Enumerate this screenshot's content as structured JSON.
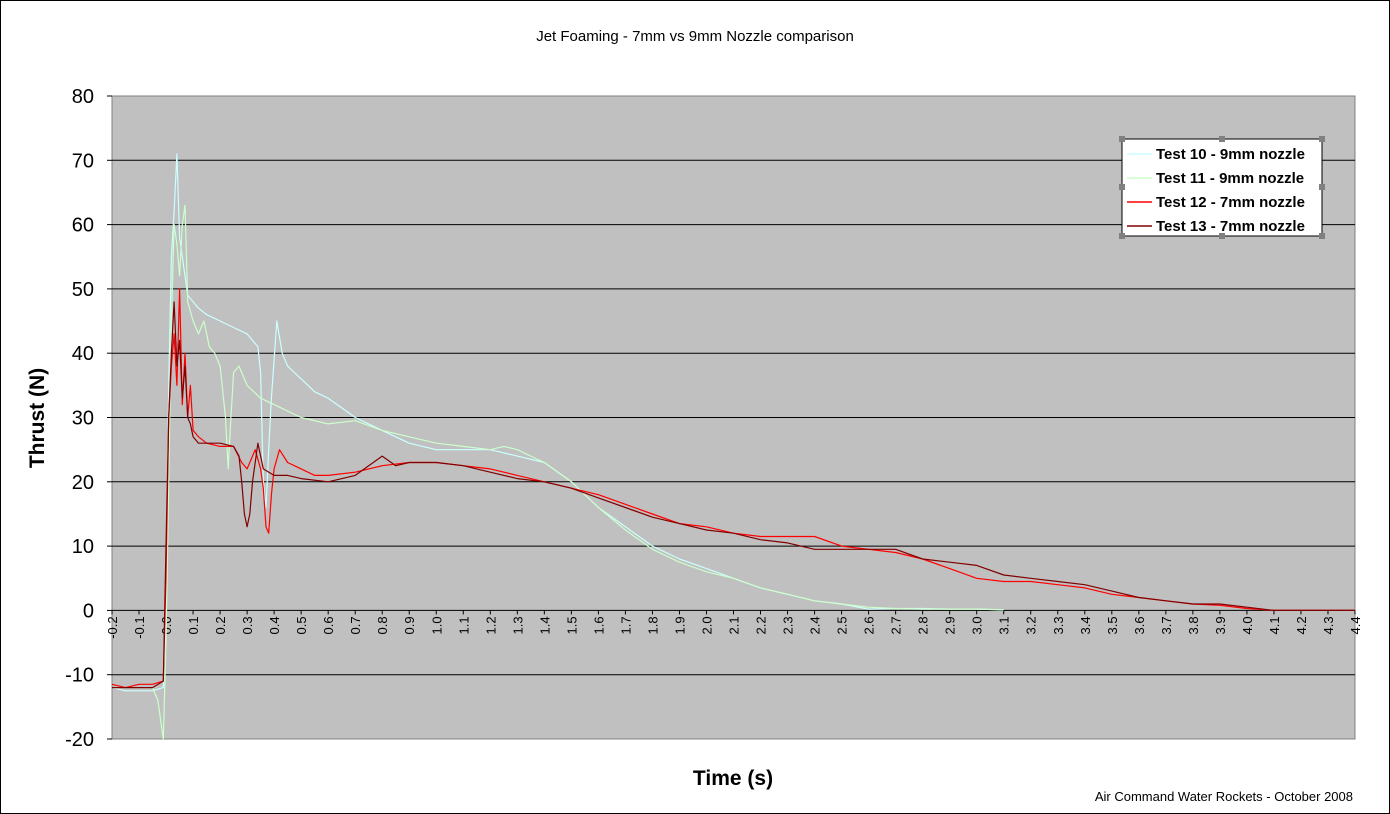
{
  "chart_data": {
    "type": "line",
    "title": "Jet Foaming - 7mm vs 9mm Nozzle comparison",
    "xlabel": "Time (s)",
    "ylabel": "Thrust (N)",
    "credit": "Air Command Water Rockets - October 2008",
    "xlim": [
      -0.2,
      4.4
    ],
    "ylim": [
      -20,
      80
    ],
    "y_ticks": [
      80,
      70,
      60,
      50,
      40,
      30,
      20,
      10,
      0,
      -10,
      -20
    ],
    "x_ticks": [
      "-0.2",
      "-0.1",
      "0.0",
      "0.1",
      "0.2",
      "0.3",
      "0.4",
      "0.5",
      "0.6",
      "0.7",
      "0.8",
      "0.9",
      "1.0",
      "1.1",
      "1.2",
      "1.3",
      "1.4",
      "1.5",
      "1.6",
      "1.7",
      "1.8",
      "1.9",
      "2.0",
      "2.1",
      "2.2",
      "2.3",
      "2.4",
      "2.5",
      "2.6",
      "2.7",
      "2.8",
      "2.9",
      "3.0",
      "3.1",
      "3.2",
      "3.3",
      "3.4",
      "3.5",
      "3.6",
      "3.7",
      "3.8",
      "3.9",
      "4.0",
      "4.1",
      "4.2",
      "4.3",
      "4.4"
    ],
    "grid": "horizontal",
    "legend_position": "top-right",
    "plot_background": "#c0c0c0",
    "series": [
      {
        "name": "Test 10 - 9mm nozzle",
        "color": "#ccffff",
        "points": [
          [
            -0.2,
            -12
          ],
          [
            -0.15,
            -12.5
          ],
          [
            -0.1,
            -12.5
          ],
          [
            -0.05,
            -12.5
          ],
          [
            -0.01,
            -12
          ],
          [
            0.0,
            0
          ],
          [
            0.01,
            35
          ],
          [
            0.02,
            55
          ],
          [
            0.03,
            62
          ],
          [
            0.04,
            71
          ],
          [
            0.05,
            58
          ],
          [
            0.06,
            55
          ],
          [
            0.07,
            52
          ],
          [
            0.08,
            49
          ],
          [
            0.1,
            48
          ],
          [
            0.12,
            47
          ],
          [
            0.15,
            46
          ],
          [
            0.2,
            45
          ],
          [
            0.25,
            44
          ],
          [
            0.3,
            43
          ],
          [
            0.34,
            41
          ],
          [
            0.35,
            37
          ],
          [
            0.36,
            20
          ],
          [
            0.37,
            16
          ],
          [
            0.38,
            25
          ],
          [
            0.39,
            33
          ],
          [
            0.41,
            45
          ],
          [
            0.43,
            40
          ],
          [
            0.45,
            38
          ],
          [
            0.5,
            36
          ],
          [
            0.55,
            34
          ],
          [
            0.6,
            33
          ],
          [
            0.7,
            30
          ],
          [
            0.8,
            28
          ],
          [
            0.9,
            26
          ],
          [
            1.0,
            25
          ],
          [
            1.1,
            25
          ],
          [
            1.2,
            25
          ],
          [
            1.3,
            24
          ],
          [
            1.4,
            23
          ],
          [
            1.5,
            20
          ],
          [
            1.6,
            16
          ],
          [
            1.7,
            13
          ],
          [
            1.8,
            10
          ],
          [
            1.9,
            8
          ],
          [
            2.0,
            6.5
          ],
          [
            2.1,
            5
          ],
          [
            2.2,
            3.5
          ],
          [
            2.3,
            2.5
          ],
          [
            2.4,
            1.5
          ],
          [
            2.5,
            1
          ],
          [
            2.6,
            0.2
          ],
          [
            2.7,
            0.3
          ],
          [
            2.8,
            0.3
          ],
          [
            2.9,
            0.2
          ],
          [
            3.0,
            0.2
          ],
          [
            3.1,
            0.1
          ]
        ]
      },
      {
        "name": "Test 11 - 9mm nozzle",
        "color": "#ccffcc",
        "points": [
          [
            -0.2,
            -12
          ],
          [
            -0.15,
            -12
          ],
          [
            -0.1,
            -12
          ],
          [
            -0.05,
            -12
          ],
          [
            -0.03,
            -14
          ],
          [
            -0.01,
            -20
          ],
          [
            0.0,
            -5
          ],
          [
            0.01,
            20
          ],
          [
            0.02,
            45
          ],
          [
            0.03,
            60
          ],
          [
            0.04,
            57
          ],
          [
            0.05,
            52
          ],
          [
            0.06,
            60
          ],
          [
            0.07,
            63
          ],
          [
            0.08,
            48
          ],
          [
            0.1,
            45
          ],
          [
            0.12,
            43
          ],
          [
            0.14,
            45
          ],
          [
            0.16,
            41
          ],
          [
            0.18,
            40
          ],
          [
            0.2,
            38
          ],
          [
            0.22,
            30
          ],
          [
            0.23,
            22
          ],
          [
            0.24,
            30
          ],
          [
            0.25,
            37
          ],
          [
            0.27,
            38
          ],
          [
            0.3,
            35
          ],
          [
            0.35,
            33
          ],
          [
            0.4,
            32
          ],
          [
            0.45,
            31
          ],
          [
            0.5,
            30
          ],
          [
            0.6,
            29
          ],
          [
            0.7,
            29.5
          ],
          [
            0.8,
            28
          ],
          [
            0.9,
            27
          ],
          [
            1.0,
            26
          ],
          [
            1.1,
            25.5
          ],
          [
            1.2,
            25
          ],
          [
            1.25,
            25.5
          ],
          [
            1.3,
            25
          ],
          [
            1.4,
            23
          ],
          [
            1.5,
            20
          ],
          [
            1.6,
            16
          ],
          [
            1.7,
            12.5
          ],
          [
            1.8,
            9.5
          ],
          [
            1.9,
            7.5
          ],
          [
            2.0,
            6
          ],
          [
            2.1,
            5
          ],
          [
            2.2,
            3.5
          ],
          [
            2.3,
            2.5
          ],
          [
            2.4,
            1.5
          ],
          [
            2.5,
            1
          ],
          [
            2.6,
            0.5
          ],
          [
            2.7,
            0.3
          ],
          [
            2.8,
            0.2
          ],
          [
            2.9,
            0.2
          ],
          [
            3.0,
            0.2
          ],
          [
            3.1,
            0.1
          ]
        ]
      },
      {
        "name": "Test 12 - 7mm nozzle",
        "color": "#ff0000",
        "points": [
          [
            -0.2,
            -11.5
          ],
          [
            -0.15,
            -12
          ],
          [
            -0.1,
            -11.5
          ],
          [
            -0.05,
            -11.5
          ],
          [
            -0.01,
            -11
          ],
          [
            0.0,
            5
          ],
          [
            0.01,
            30
          ],
          [
            0.02,
            38
          ],
          [
            0.03,
            43
          ],
          [
            0.04,
            35
          ],
          [
            0.05,
            50
          ],
          [
            0.06,
            32
          ],
          [
            0.07,
            40
          ],
          [
            0.08,
            30
          ],
          [
            0.09,
            35
          ],
          [
            0.1,
            28
          ],
          [
            0.12,
            27
          ],
          [
            0.15,
            26
          ],
          [
            0.2,
            25.5
          ],
          [
            0.25,
            25.5
          ],
          [
            0.28,
            23
          ],
          [
            0.3,
            22
          ],
          [
            0.33,
            25
          ],
          [
            0.35,
            22
          ],
          [
            0.36,
            19
          ],
          [
            0.37,
            13
          ],
          [
            0.38,
            12
          ],
          [
            0.39,
            18
          ],
          [
            0.4,
            22
          ],
          [
            0.42,
            25
          ],
          [
            0.45,
            23
          ],
          [
            0.5,
            22
          ],
          [
            0.55,
            21
          ],
          [
            0.6,
            21
          ],
          [
            0.7,
            21.5
          ],
          [
            0.8,
            22.5
          ],
          [
            0.9,
            23
          ],
          [
            1.0,
            23
          ],
          [
            1.1,
            22.5
          ],
          [
            1.2,
            22
          ],
          [
            1.3,
            21
          ],
          [
            1.4,
            20
          ],
          [
            1.5,
            19
          ],
          [
            1.6,
            18
          ],
          [
            1.7,
            16.5
          ],
          [
            1.8,
            15
          ],
          [
            1.9,
            13.5
          ],
          [
            2.0,
            13
          ],
          [
            2.1,
            12
          ],
          [
            2.2,
            11.5
          ],
          [
            2.3,
            11.5
          ],
          [
            2.4,
            11.5
          ],
          [
            2.5,
            10
          ],
          [
            2.6,
            9.5
          ],
          [
            2.7,
            9
          ],
          [
            2.8,
            8
          ],
          [
            2.9,
            6.5
          ],
          [
            3.0,
            5
          ],
          [
            3.1,
            4.5
          ],
          [
            3.2,
            4.5
          ],
          [
            3.3,
            4
          ],
          [
            3.4,
            3.5
          ],
          [
            3.5,
            2.5
          ],
          [
            3.6,
            2
          ],
          [
            3.7,
            1.5
          ],
          [
            3.8,
            1
          ],
          [
            3.9,
            0.8
          ],
          [
            4.0,
            0.3
          ],
          [
            4.1,
            0
          ],
          [
            4.2,
            0
          ],
          [
            4.3,
            0
          ],
          [
            4.4,
            0
          ]
        ]
      },
      {
        "name": "Test 13 - 7mm nozzle",
        "color": "#800000",
        "points": [
          [
            -0.2,
            -12
          ],
          [
            -0.15,
            -12
          ],
          [
            -0.1,
            -12
          ],
          [
            -0.05,
            -12
          ],
          [
            -0.01,
            -11
          ],
          [
            0.0,
            10
          ],
          [
            0.01,
            30
          ],
          [
            0.02,
            40
          ],
          [
            0.03,
            48
          ],
          [
            0.04,
            38
          ],
          [
            0.05,
            42
          ],
          [
            0.06,
            33
          ],
          [
            0.07,
            38
          ],
          [
            0.08,
            30
          ],
          [
            0.09,
            29
          ],
          [
            0.1,
            27
          ],
          [
            0.12,
            26
          ],
          [
            0.15,
            26
          ],
          [
            0.2,
            26
          ],
          [
            0.25,
            25.5
          ],
          [
            0.27,
            24
          ],
          [
            0.28,
            20
          ],
          [
            0.29,
            15
          ],
          [
            0.3,
            13
          ],
          [
            0.31,
            15
          ],
          [
            0.32,
            20
          ],
          [
            0.34,
            26
          ],
          [
            0.36,
            22
          ],
          [
            0.4,
            21
          ],
          [
            0.45,
            21
          ],
          [
            0.5,
            20.5
          ],
          [
            0.6,
            20
          ],
          [
            0.7,
            21
          ],
          [
            0.8,
            24
          ],
          [
            0.85,
            22.5
          ],
          [
            0.9,
            23
          ],
          [
            1.0,
            23
          ],
          [
            1.1,
            22.5
          ],
          [
            1.2,
            21.5
          ],
          [
            1.3,
            20.5
          ],
          [
            1.4,
            20
          ],
          [
            1.5,
            19
          ],
          [
            1.6,
            17.5
          ],
          [
            1.7,
            16
          ],
          [
            1.8,
            14.5
          ],
          [
            1.9,
            13.5
          ],
          [
            2.0,
            12.5
          ],
          [
            2.1,
            12
          ],
          [
            2.2,
            11
          ],
          [
            2.3,
            10.5
          ],
          [
            2.4,
            9.5
          ],
          [
            2.5,
            9.5
          ],
          [
            2.6,
            9.5
          ],
          [
            2.7,
            9.5
          ],
          [
            2.8,
            8
          ],
          [
            2.9,
            7.5
          ],
          [
            3.0,
            7
          ],
          [
            3.1,
            5.5
          ],
          [
            3.2,
            5
          ],
          [
            3.3,
            4.5
          ],
          [
            3.4,
            4
          ],
          [
            3.5,
            3
          ],
          [
            3.6,
            2
          ],
          [
            3.7,
            1.5
          ],
          [
            3.8,
            1
          ],
          [
            3.9,
            1
          ],
          [
            4.0,
            0.5
          ],
          [
            4.1,
            0
          ],
          [
            4.2,
            0
          ],
          [
            4.3,
            0
          ],
          [
            4.4,
            0
          ]
        ]
      }
    ]
  }
}
